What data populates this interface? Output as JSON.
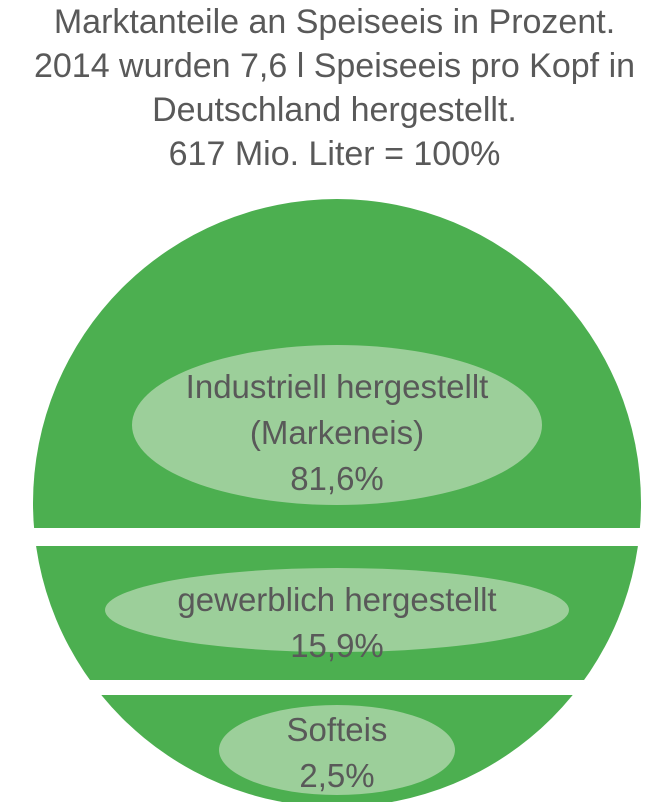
{
  "chart_data": {
    "type": "slicedcircle",
    "title": "Marktanteile an Speiseeis in Prozent.",
    "subtitle": "2014 wurden 7,6 l Speiseeis pro Kopf in Deutschland hergestellt.",
    "note": "617 Mio. Liter = 100%",
    "categories": [
      "Industriell hergestellt (Markeneis)",
      "gewerblich hergestellt",
      "Softeis"
    ],
    "values": [
      81.6,
      15.9,
      2.5
    ],
    "value_labels": [
      "81,6%",
      "15,9%",
      "2,5%"
    ],
    "color": "#4caf50"
  }
}
